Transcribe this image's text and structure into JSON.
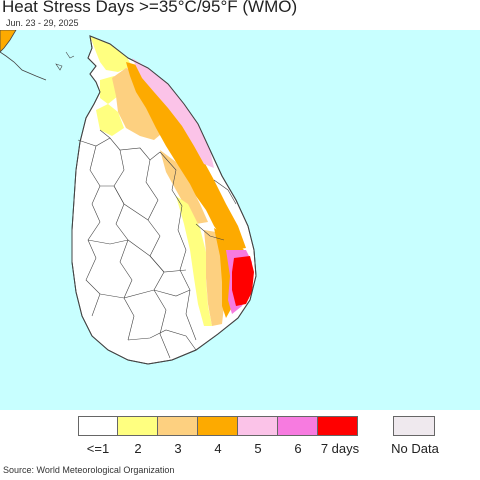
{
  "title": "Heat Stress Days >=35°C/95°F (WMO)",
  "date_range": "Jun. 23 - 29, 2025",
  "source": "Source: World Meteorological Organization",
  "legend": {
    "items": [
      {
        "label": "<=1",
        "color": "#ffffff"
      },
      {
        "label": "2",
        "color": "#ffff80"
      },
      {
        "label": "3",
        "color": "#fdd080"
      },
      {
        "label": "4",
        "color": "#fdaa00"
      },
      {
        "label": "5",
        "color": "#fbc3e8"
      },
      {
        "label": "6",
        "color": "#f77be0"
      },
      {
        "label": "7 days",
        "color": "#ff0000"
      }
    ],
    "no_data": {
      "label": "No Data",
      "color": "#efe9ee"
    }
  },
  "colors": {
    "ocean": "#c8ffff",
    "land_border": "#444444"
  }
}
